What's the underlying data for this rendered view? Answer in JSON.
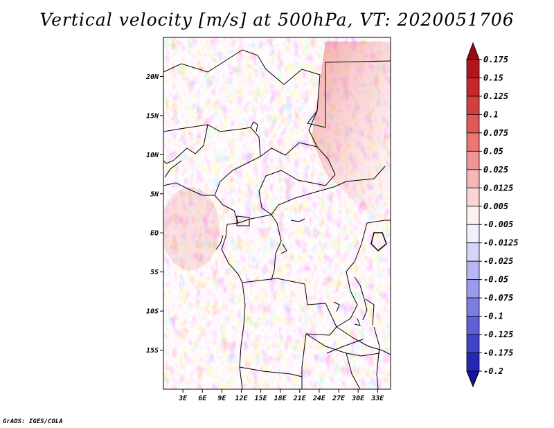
{
  "title": "Vertical velocity [m/s] at 500hPa, VT: 2020051706",
  "credit": "GrADS: IGES/COLA",
  "map": {
    "lon_range": [
      0,
      35
    ],
    "lat_range": [
      -20,
      25
    ],
    "lon_ticks": [
      {
        "value": 3,
        "label": "3E"
      },
      {
        "value": 6,
        "label": "6E"
      },
      {
        "value": 9,
        "label": "9E"
      },
      {
        "value": 12,
        "label": "12E"
      },
      {
        "value": 15,
        "label": "15E"
      },
      {
        "value": 18,
        "label": "18E"
      },
      {
        "value": 21,
        "label": "21E"
      },
      {
        "value": 24,
        "label": "24E"
      },
      {
        "value": 27,
        "label": "27E"
      },
      {
        "value": 30,
        "label": "30E"
      },
      {
        "value": 33,
        "label": "33E"
      }
    ],
    "lat_ticks": [
      {
        "value": 20,
        "label": "20N"
      },
      {
        "value": 15,
        "label": "15N"
      },
      {
        "value": 10,
        "label": "10N"
      },
      {
        "value": 5,
        "label": "5N"
      },
      {
        "value": 0,
        "label": "EQ"
      },
      {
        "value": -5,
        "label": "5S"
      },
      {
        "value": -10,
        "label": "10S"
      },
      {
        "value": -15,
        "label": "15S"
      }
    ]
  },
  "colorbar": {
    "levels": [
      {
        "label": "0.175",
        "color": "#a50f15"
      },
      {
        "label": "0.15",
        "color": "#bb1e24"
      },
      {
        "label": "0.125",
        "color": "#cd3235"
      },
      {
        "label": "0.1",
        "color": "#dc4a4a"
      },
      {
        "label": "0.075",
        "color": "#e66666"
      },
      {
        "label": "0.05",
        "color": "#ee8585"
      },
      {
        "label": "0.025",
        "color": "#f4a6a6"
      },
      {
        "label": "0.0125",
        "color": "#f9c6c6"
      },
      {
        "label": "0.005",
        "color": "#fce3e3"
      },
      {
        "label": "-0.005",
        "color": "#ffffff"
      },
      {
        "label": "-0.0125",
        "color": "#e3e3fc"
      },
      {
        "label": "-0.025",
        "color": "#c6c6f7"
      },
      {
        "label": "-0.05",
        "color": "#a8a8f0"
      },
      {
        "label": "-0.075",
        "color": "#8b8be8"
      },
      {
        "label": "-0.1",
        "color": "#6d6dde"
      },
      {
        "label": "-0.125",
        "color": "#5050d2"
      },
      {
        "label": "-0.175",
        "color": "#3232c0"
      },
      {
        "label": "-0.2",
        "color": "#1a1aa8"
      }
    ],
    "top_color": "#9a0c12",
    "bottom_color": "#14149a"
  }
}
